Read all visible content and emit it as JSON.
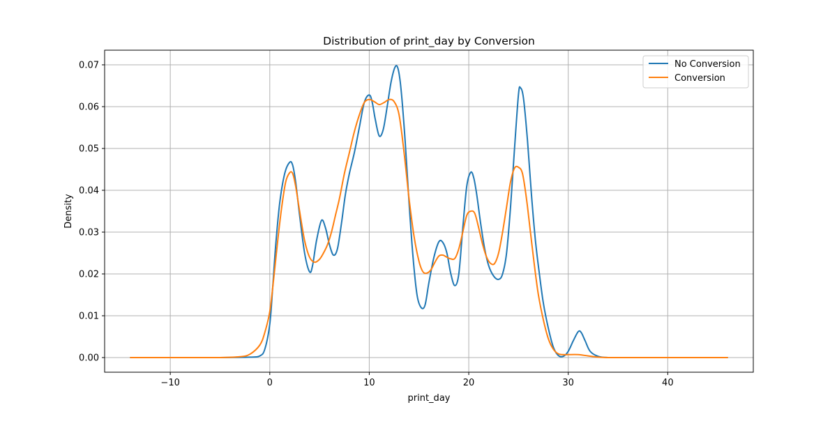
{
  "chart_data": {
    "type": "line",
    "title": "Distribution of print_day by Conversion",
    "xlabel": "print_day",
    "ylabel": "Density",
    "xlim": [
      -16.6,
      48.6
    ],
    "ylim": [
      -0.0035,
      0.0735
    ],
    "xticks": [
      -10,
      0,
      10,
      20,
      30,
      40
    ],
    "xtick_labels": [
      "−10",
      "0",
      "10",
      "20",
      "30",
      "40"
    ],
    "yticks": [
      0.0,
      0.01,
      0.02,
      0.03,
      0.04,
      0.05,
      0.06,
      0.07
    ],
    "ytick_labels": [
      "0.00",
      "0.01",
      "0.02",
      "0.03",
      "0.04",
      "0.05",
      "0.06",
      "0.07"
    ],
    "grid": true,
    "legend_position": "top-right",
    "series": [
      {
        "name": "No Conversion",
        "color": "#1f77b4",
        "x": [
          -14,
          -10,
          -5,
          -2,
          -1,
          -0.5,
          0,
          0.3,
          0.6,
          1.0,
          1.5,
          2.0,
          2.3,
          2.6,
          3.0,
          3.5,
          4.0,
          4.3,
          4.7,
          5.2,
          5.6,
          6.0,
          6.4,
          6.8,
          7.2,
          7.6,
          8.0,
          8.5,
          9.0,
          9.5,
          10.0,
          10.3,
          10.6,
          11.0,
          11.4,
          11.8,
          12.2,
          12.6,
          12.9,
          13.2,
          13.6,
          14.0,
          14.4,
          14.8,
          15.2,
          15.6,
          16.0,
          16.5,
          17.0,
          17.4,
          17.8,
          18.2,
          18.6,
          19.0,
          19.4,
          19.8,
          20.2,
          20.5,
          20.8,
          21.2,
          21.6,
          22.0,
          22.5,
          23.0,
          23.4,
          23.8,
          24.2,
          24.6,
          25.0,
          25.2,
          25.5,
          25.9,
          26.3,
          26.7,
          27.1,
          27.5,
          28.0,
          28.5,
          29.0,
          29.5,
          30.0,
          30.5,
          31.0,
          31.3,
          31.7,
          32.2,
          33.0,
          34.0,
          36.0,
          40.0,
          46.0
        ],
        "y": [
          0.0,
          0.0,
          0.0,
          0.0001,
          0.0004,
          0.002,
          0.008,
          0.017,
          0.027,
          0.037,
          0.044,
          0.0467,
          0.046,
          0.042,
          0.034,
          0.025,
          0.0205,
          0.022,
          0.028,
          0.0328,
          0.031,
          0.027,
          0.0245,
          0.026,
          0.032,
          0.039,
          0.044,
          0.049,
          0.055,
          0.061,
          0.0628,
          0.061,
          0.057,
          0.053,
          0.0545,
          0.06,
          0.066,
          0.0695,
          0.069,
          0.064,
          0.052,
          0.037,
          0.024,
          0.015,
          0.012,
          0.0125,
          0.018,
          0.024,
          0.0277,
          0.0275,
          0.025,
          0.02,
          0.0172,
          0.02,
          0.031,
          0.041,
          0.0443,
          0.043,
          0.039,
          0.032,
          0.026,
          0.022,
          0.0195,
          0.0187,
          0.02,
          0.025,
          0.036,
          0.05,
          0.063,
          0.0645,
          0.062,
          0.052,
          0.039,
          0.028,
          0.02,
          0.013,
          0.007,
          0.0025,
          0.0005,
          0.0003,
          0.0015,
          0.004,
          0.0062,
          0.006,
          0.004,
          0.0015,
          0.0003,
          0.0,
          0.0,
          0.0,
          0.0
        ]
      },
      {
        "name": "Conversion",
        "color": "#ff7f0e",
        "x": [
          -14,
          -10,
          -5,
          -3,
          -2,
          -1,
          -0.5,
          0,
          0.4,
          0.8,
          1.2,
          1.6,
          2.0,
          2.3,
          2.6,
          3.0,
          3.5,
          4.0,
          4.5,
          5.0,
          5.4,
          5.8,
          6.2,
          6.6,
          7.0,
          7.5,
          8.0,
          8.5,
          9.0,
          9.5,
          10.0,
          10.5,
          11.0,
          11.5,
          12.0,
          12.5,
          13.0,
          13.5,
          14.0,
          14.5,
          15.0,
          15.4,
          15.8,
          16.2,
          16.6,
          17.0,
          17.4,
          17.8,
          18.2,
          18.6,
          19.0,
          19.4,
          19.8,
          20.2,
          20.6,
          21.0,
          21.4,
          21.8,
          22.2,
          22.6,
          23.0,
          23.4,
          23.8,
          24.2,
          24.6,
          25.0,
          25.4,
          25.8,
          26.2,
          26.6,
          27.0,
          27.5,
          28.0,
          28.5,
          29.0,
          29.5,
          30.0,
          31.0,
          32.0,
          33.0,
          34.0,
          36.0,
          40.0,
          46.0
        ],
        "y": [
          0.0,
          0.0,
          0.0,
          0.0002,
          0.0008,
          0.003,
          0.006,
          0.011,
          0.019,
          0.028,
          0.036,
          0.042,
          0.0442,
          0.044,
          0.041,
          0.035,
          0.028,
          0.024,
          0.0228,
          0.0235,
          0.025,
          0.027,
          0.03,
          0.034,
          0.038,
          0.044,
          0.049,
          0.054,
          0.058,
          0.061,
          0.0617,
          0.0612,
          0.0605,
          0.061,
          0.0617,
          0.0612,
          0.058,
          0.049,
          0.038,
          0.029,
          0.023,
          0.0205,
          0.0202,
          0.021,
          0.0228,
          0.0243,
          0.0245,
          0.024,
          0.0236,
          0.0237,
          0.026,
          0.03,
          0.034,
          0.035,
          0.0345,
          0.031,
          0.027,
          0.024,
          0.0225,
          0.0225,
          0.025,
          0.03,
          0.036,
          0.042,
          0.0453,
          0.0455,
          0.044,
          0.038,
          0.03,
          0.022,
          0.015,
          0.009,
          0.0045,
          0.002,
          0.0009,
          0.0007,
          0.0007,
          0.0007,
          0.0004,
          0.0001,
          0.0,
          0.0,
          0.0,
          0.0
        ]
      }
    ]
  }
}
